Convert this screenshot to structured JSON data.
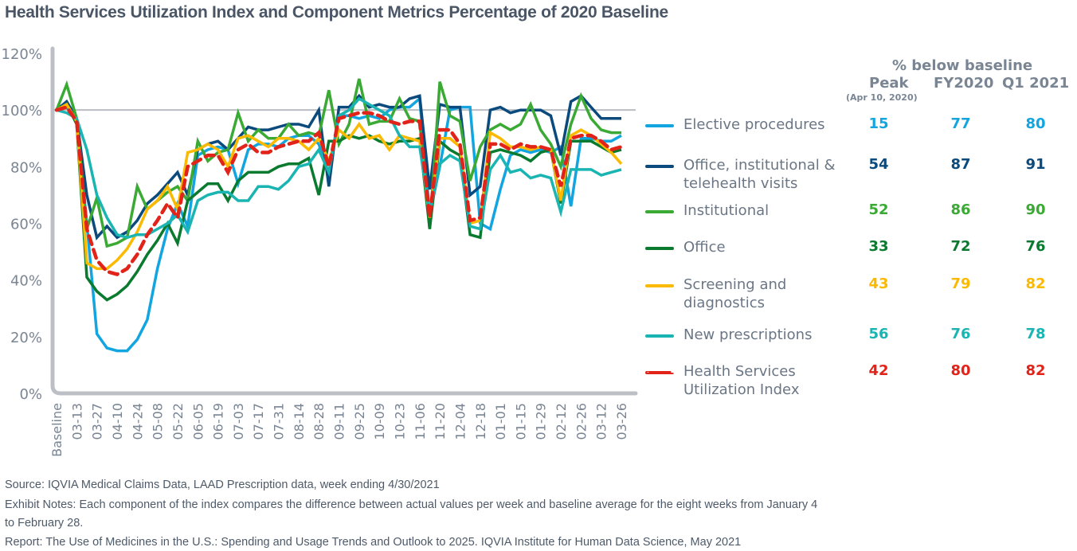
{
  "title": "Health Services Utilization Index and Component Metrics Percentage of 2020 Baseline",
  "chart_data": {
    "type": "line",
    "title": "Health Services Utilization Index and Component Metrics Percentage of 2020 Baseline",
    "xlabel": "",
    "ylabel": "",
    "ylim": [
      0,
      120
    ],
    "yticks": [
      "0%",
      "20%",
      "40%",
      "60%",
      "80%",
      "100%",
      "120%"
    ],
    "ytick_values": [
      0,
      20,
      40,
      60,
      80,
      100,
      120
    ],
    "reference_line": 100,
    "grid": false,
    "x_labels": [
      "Baseline",
      "03-13",
      "03-27",
      "04-10",
      "04-24",
      "05-08",
      "05-22",
      "06-05",
      "06-19",
      "07-03",
      "07-17",
      "07-31",
      "08-14",
      "08-28",
      "09-11",
      "09-25",
      "10-09",
      "10-23",
      "11-06",
      "11-20",
      "12-04",
      "12-18",
      "01-01",
      "01-15",
      "01-29",
      "02-12",
      "02-26",
      "03-12",
      "03-26"
    ],
    "x_label_indices": [
      0,
      2,
      4,
      6,
      8,
      10,
      12,
      14,
      16,
      18,
      20,
      22,
      24,
      26,
      28,
      30,
      32,
      34,
      36,
      38,
      40,
      42,
      44,
      46,
      48,
      50,
      52,
      54,
      56
    ],
    "n_points": 57,
    "series": [
      {
        "name": "Elective procedures",
        "color": "#12a5e0",
        "dashed": false,
        "values": [
          100,
          101,
          96,
          60,
          21,
          16,
          15,
          15,
          19,
          26,
          44,
          58,
          67,
          59,
          84,
          86,
          87,
          86,
          74,
          86,
          88,
          88,
          87,
          90,
          91,
          91,
          88,
          77,
          98,
          98,
          97,
          98,
          97,
          100,
          101,
          101,
          104,
          63,
          80,
          100,
          101,
          101,
          60,
          58,
          72,
          84,
          86,
          85,
          86,
          85,
          87,
          66,
          90,
          90,
          89,
          89,
          91
        ]
      },
      {
        "name": "Office, institutional & telehealth visits",
        "color": "#0b4a7c",
        "dashed": false,
        "values": [
          100,
          103,
          97,
          70,
          55,
          59,
          55,
          57,
          61,
          67,
          70,
          74,
          78,
          70,
          86,
          88,
          89,
          86,
          90,
          94,
          93,
          93,
          94,
          95,
          95,
          94,
          100,
          73,
          101,
          101,
          105,
          101,
          102,
          101,
          101,
          104,
          105,
          72,
          102,
          101,
          101,
          70,
          73,
          100,
          101,
          99,
          100,
          100,
          100,
          98,
          84,
          103,
          105,
          101,
          97,
          97,
          97
        ]
      },
      {
        "name": "Institutional",
        "color": "#3aaa35",
        "dashed": false,
        "values": [
          100,
          109,
          97,
          58,
          69,
          52,
          53,
          55,
          73,
          65,
          68,
          71,
          73,
          68,
          89,
          82,
          85,
          86,
          99,
          89,
          93,
          90,
          90,
          95,
          91,
          92,
          91,
          107,
          88,
          95,
          111,
          95,
          96,
          96,
          104,
          97,
          96,
          58,
          110,
          98,
          96,
          75,
          87,
          93,
          95,
          93,
          95,
          102,
          93,
          88,
          80,
          95,
          105,
          97,
          93,
          92,
          92
        ]
      },
      {
        "name": "Office",
        "color": "#0a7a2e",
        "dashed": false,
        "values": [
          100,
          102,
          95,
          41,
          36,
          33,
          35,
          38,
          43,
          49,
          54,
          60,
          53,
          68,
          71,
          74,
          74,
          68,
          75,
          78,
          78,
          78,
          80,
          81,
          81,
          83,
          70,
          89,
          89,
          91,
          90,
          91,
          89,
          88,
          89,
          89,
          90,
          58,
          89,
          86,
          84,
          56,
          55,
          85,
          86,
          85,
          84,
          82,
          85,
          86,
          67,
          89,
          89,
          89,
          87,
          85,
          86
        ]
      },
      {
        "name": "Screening and diagnostics",
        "color": "#fbb900",
        "dashed": false,
        "values": [
          100,
          102,
          96,
          46,
          44,
          44,
          47,
          51,
          57,
          65,
          68,
          73,
          65,
          85,
          86,
          88,
          86,
          80,
          90,
          91,
          89,
          87,
          90,
          90,
          89,
          86,
          90,
          82,
          93,
          90,
          95,
          90,
          91,
          86,
          91,
          90,
          89,
          62,
          90,
          90,
          87,
          60,
          61,
          92,
          90,
          87,
          87,
          86,
          87,
          86,
          68,
          91,
          93,
          91,
          88,
          85,
          81
        ]
      },
      {
        "name": "New prescriptions",
        "color": "#1ab5b2",
        "dashed": false,
        "values": [
          100,
          99,
          97,
          86,
          70,
          62,
          56,
          55,
          56,
          56,
          58,
          60,
          63,
          57,
          68,
          70,
          71,
          71,
          68,
          68,
          73,
          73,
          72,
          75,
          80,
          81,
          86,
          78,
          98,
          100,
          104,
          102,
          100,
          98,
          91,
          87,
          87,
          64,
          81,
          84,
          82,
          59,
          58,
          79,
          84,
          78,
          79,
          76,
          77,
          76,
          64,
          79,
          79,
          79,
          77,
          78,
          79
        ]
      },
      {
        "name": "Health Services Utilization Index",
        "color": "#e2231a",
        "dashed": true,
        "values": [
          100,
          101,
          96,
          58,
          47,
          43,
          42,
          44,
          49,
          56,
          61,
          67,
          62,
          80,
          82,
          84,
          84,
          78,
          86,
          88,
          85,
          85,
          87,
          88,
          89,
          89,
          92,
          80,
          97,
          98,
          99,
          99,
          98,
          96,
          95,
          96,
          96,
          62,
          93,
          93,
          88,
          61,
          62,
          88,
          88,
          86,
          88,
          87,
          87,
          86,
          73,
          90,
          91,
          91,
          89,
          86,
          87
        ]
      }
    ]
  },
  "table": {
    "heading": "% below baseline",
    "columns": [
      "Peak",
      "FY2020",
      "Q1 2021"
    ],
    "peak_subtitle": "(Apr 10, 2020)",
    "rows": [
      {
        "label": "Elective procedures",
        "color": "#12a5e0",
        "dashed": false,
        "peak": "15",
        "fy2020": "77",
        "q1_2021": "80"
      },
      {
        "label": "Office, institutional & telehealth visits",
        "color": "#0b4a7c",
        "dashed": false,
        "peak": "54",
        "fy2020": "87",
        "q1_2021": "91"
      },
      {
        "label": "Institutional",
        "color": "#3aaa35",
        "dashed": false,
        "peak": "52",
        "fy2020": "86",
        "q1_2021": "90"
      },
      {
        "label": "Office",
        "color": "#0a7a2e",
        "dashed": false,
        "peak": "33",
        "fy2020": "72",
        "q1_2021": "76"
      },
      {
        "label": "Screening and diagnostics",
        "color": "#fbb900",
        "dashed": false,
        "peak": "43",
        "fy2020": "79",
        "q1_2021": "82"
      },
      {
        "label": "New prescriptions",
        "color": "#1ab5b2",
        "dashed": false,
        "peak": "56",
        "fy2020": "76",
        "q1_2021": "78"
      },
      {
        "label": "Health Services Utilization Index",
        "color": "#e2231a",
        "dashed": true,
        "peak": "42",
        "fy2020": "80",
        "q1_2021": "82"
      }
    ]
  },
  "footer": {
    "source": "Source: IQVIA Medical Claims Data, LAAD Prescription data, week ending 4/30/2021",
    "notes_line1": "Exhibit Notes: Each component of the index compares the difference between actual values per week and baseline average for the eight weeks from January 4",
    "notes_line2": "to February 28.",
    "report": "Report: The Use of Medicines in the U.S.: Spending and Usage Trends and Outlook to 2025. IQVIA Institute for Human Data Science, May 2021"
  }
}
